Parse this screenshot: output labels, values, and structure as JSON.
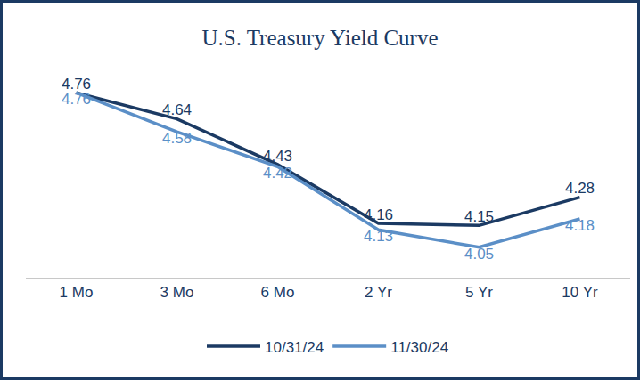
{
  "chart_data": {
    "type": "line",
    "title": "U.S. Treasury Yield Curve",
    "categories": [
      "1 Mo",
      "3 Mo",
      "6 Mo",
      "2 Yr",
      "5 Yr",
      "10 Yr"
    ],
    "series": [
      {
        "name": "10/31/24",
        "color": "#1b3a63",
        "values": [
          4.76,
          4.64,
          4.43,
          4.16,
          4.15,
          4.28
        ]
      },
      {
        "name": "11/30/24",
        "color": "#5b8fc7",
        "values": [
          4.76,
          4.58,
          4.42,
          4.13,
          4.05,
          4.18
        ]
      }
    ],
    "ylim": [
      3.91,
      4.9
    ],
    "tick_labels": "x",
    "grid": false,
    "data_labels": true,
    "legend": "bottom"
  }
}
